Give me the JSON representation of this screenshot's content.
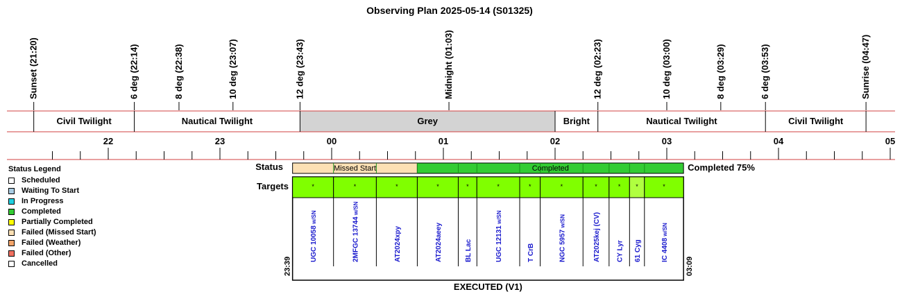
{
  "title": "Observing Plan 2025-05-14 (S01325)",
  "chart_data": {
    "type": "timeline",
    "title": "Observing Plan 2025-05-14 (S01325)",
    "events": [
      {
        "label": "Sunset (21:20)",
        "time": "21:20"
      },
      {
        "label": "6 deg (22:14)",
        "time": "22:14"
      },
      {
        "label": "8 deg (22:38)",
        "time": "22:38"
      },
      {
        "label": "10 deg (23:07)",
        "time": "23:07"
      },
      {
        "label": "12 deg (23:43)",
        "time": "23:43"
      },
      {
        "label": "Midnight (01:03)",
        "time": "01:03"
      },
      {
        "label": "12 deg (02:23)",
        "time": "02:23"
      },
      {
        "label": "10 deg (03:00)",
        "time": "03:00"
      },
      {
        "label": "8 deg (03:29)",
        "time": "03:29"
      },
      {
        "label": "6 deg (03:53)",
        "time": "03:53"
      },
      {
        "label": "Sunrise (04:47)",
        "time": "04:47"
      }
    ],
    "periods": [
      {
        "label": "Civil Twilight",
        "start": "21:20",
        "end": "22:14",
        "color": "#ffffff"
      },
      {
        "label": "Nautical Twilight",
        "start": "22:14",
        "end": "23:43",
        "color": "#ffffff"
      },
      {
        "label": "Grey",
        "start": "23:43",
        "end": "02:00",
        "color": "#d3d3d3"
      },
      {
        "label": "Bright",
        "start": "02:00",
        "end": "02:23",
        "color": "#ffffff"
      },
      {
        "label": "Nautical Twilight",
        "start": "02:23",
        "end": "03:53",
        "color": "#ffffff"
      },
      {
        "label": "Civil Twilight",
        "start": "03:53",
        "end": "04:47",
        "color": "#ffffff"
      }
    ],
    "hour_ticks": [
      "22",
      "23",
      "00",
      "01",
      "02",
      "03",
      "04",
      "05"
    ],
    "status_label": "Status",
    "targets_label": "Targets",
    "status_segments": [
      {
        "label": "Missed Start",
        "start": "23:39",
        "end": "00:46",
        "color": "#fce0b4"
      },
      {
        "label": "Completed",
        "start": "00:46",
        "end": "03:09",
        "color": "#33cc33"
      }
    ],
    "completion_text": "Completed 75%",
    "start_time": "23:39",
    "end_time": "03:09",
    "footer": "EXECUTED (V1)",
    "targets": [
      {
        "name": "UGC 10058",
        "suffix": " w/SN",
        "mark": "*",
        "start": "23:39",
        "end": "00:01",
        "color": "#80ff00"
      },
      {
        "name": "2MFGC 13744",
        "suffix": " w/SN",
        "mark": "*",
        "start": "00:01",
        "end": "00:24",
        "color": "#80ff00"
      },
      {
        "name": "AT2024xpy",
        "suffix": "",
        "mark": "*",
        "start": "00:24",
        "end": "00:46",
        "color": "#80ff00"
      },
      {
        "name": "AT2024aeey",
        "suffix": "",
        "mark": "*",
        "start": "00:46",
        "end": "01:08",
        "color": "#80ff00"
      },
      {
        "name": "BL Lac",
        "suffix": "",
        "mark": "*",
        "start": "01:08",
        "end": "01:18",
        "color": "#80ff00"
      },
      {
        "name": "UGC 12131",
        "suffix": " w/SN",
        "mark": "*",
        "start": "01:18",
        "end": "01:41",
        "color": "#80ff00"
      },
      {
        "name": "T CrB",
        "suffix": "",
        "mark": "*",
        "start": "01:41",
        "end": "01:52",
        "color": "#80ff00"
      },
      {
        "name": "NGC 5957",
        "suffix": " w/SN",
        "mark": "*",
        "start": "01:52",
        "end": "02:15",
        "color": "#80ff00"
      },
      {
        "name": "AT2025kej (CV)",
        "suffix": "",
        "mark": "*",
        "start": "02:15",
        "end": "02:29",
        "color": "#80ff00"
      },
      {
        "name": "CY Lyr",
        "suffix": "",
        "mark": "*",
        "start": "02:29",
        "end": "02:40",
        "color": "#80ff00"
      },
      {
        "name": "61 Cyg",
        "suffix": "",
        "mark": "*",
        "start": "02:40",
        "end": "02:48",
        "color": "#b0ff40"
      },
      {
        "name": "IC 4408",
        "suffix": " w/SN",
        "mark": "*",
        "start": "02:48",
        "end": "03:09",
        "color": "#80ff00"
      }
    ],
    "legend": {
      "title": "Status Legend",
      "items": [
        {
          "label": "Scheduled",
          "color": "#ffffff"
        },
        {
          "label": "Waiting To Start",
          "color": "#a9cce3"
        },
        {
          "label": "In Progress",
          "color": "#20d0e0"
        },
        {
          "label": "Completed",
          "color": "#33cc33"
        },
        {
          "label": "Partially Completed",
          "color": "#ffff00"
        },
        {
          "label": "Failed (Missed Start)",
          "color": "#fce0b4"
        },
        {
          "label": "Failed (Weather)",
          "color": "#f4a56a"
        },
        {
          "label": "Failed (Other)",
          "color": "#f07060"
        },
        {
          "label": "Cancelled",
          "color": "#ffffff"
        }
      ]
    }
  }
}
